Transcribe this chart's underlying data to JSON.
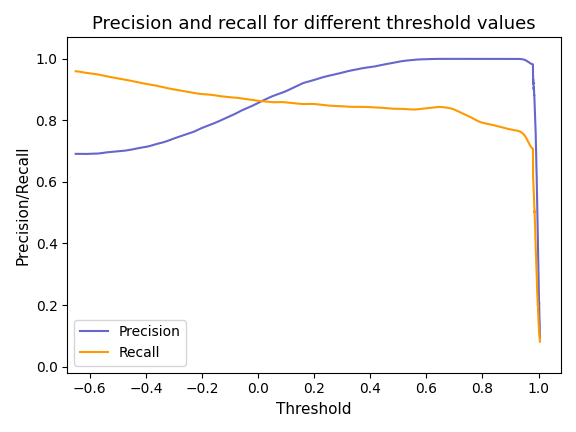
{
  "title": "Precision and recall for different threshold values",
  "xlabel": "Threshold",
  "ylabel": "Precision/Recall",
  "precision_color": "#6666cc",
  "recall_color": "#ff9900",
  "xlim": [
    -0.68,
    1.08
  ],
  "ylim": [
    -0.02,
    1.07
  ],
  "legend_labels": [
    "Precision",
    "Recall"
  ],
  "figsize": [
    5.76,
    4.32
  ],
  "dpi": 100
}
